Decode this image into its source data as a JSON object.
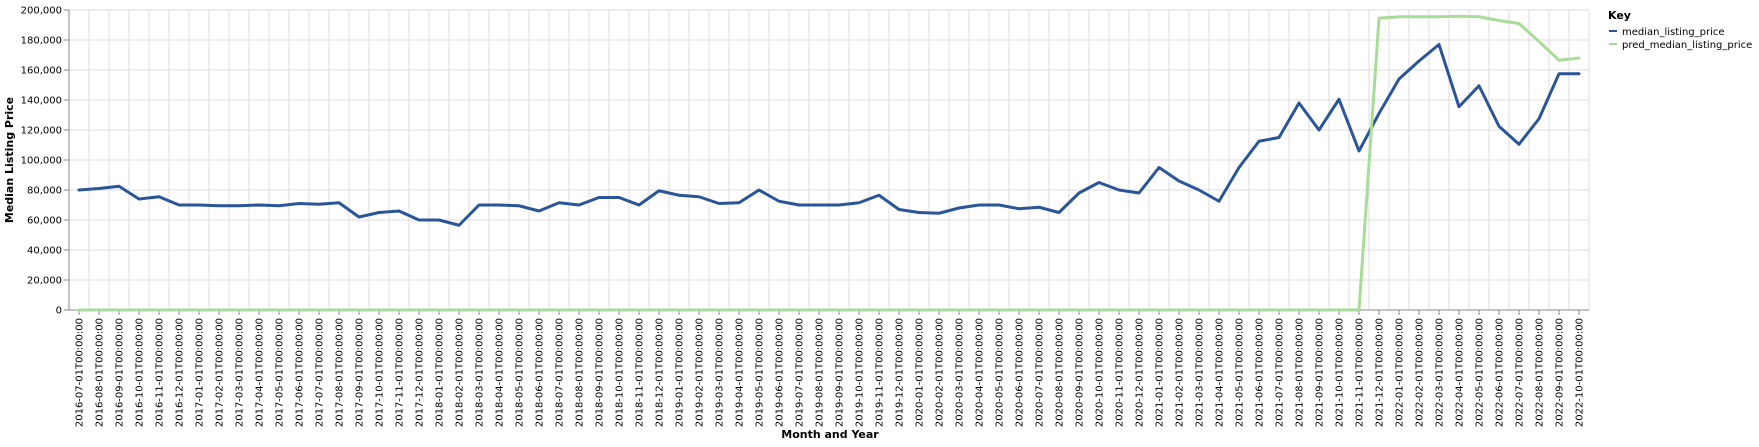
{
  "chart_data": {
    "type": "line",
    "xlabel": "Month and Year",
    "ylabel": "Median Listing Price",
    "ylim": [
      0,
      200000
    ],
    "yticks": [
      0,
      20000,
      40000,
      60000,
      80000,
      100000,
      120000,
      140000,
      160000,
      180000,
      200000
    ],
    "ytick_labels": [
      "0",
      "20,000",
      "40,000",
      "60,000",
      "80,000",
      "100,000",
      "120,000",
      "140,000",
      "160,000",
      "180,000",
      "200,000"
    ],
    "grid": true,
    "legend": {
      "title": "Key",
      "placement": "top-right"
    },
    "x": [
      "2016-07-01T00:00:00",
      "2016-08-01T00:00:00",
      "2016-09-01T00:00:00",
      "2016-10-01T00:00:00",
      "2016-11-01T00:00:00",
      "2016-12-01T00:00:00",
      "2017-01-01T00:00:00",
      "2017-02-01T00:00:00",
      "2017-03-01T00:00:00",
      "2017-04-01T00:00:00",
      "2017-05-01T00:00:00",
      "2017-06-01T00:00:00",
      "2017-07-01T00:00:00",
      "2017-08-01T00:00:00",
      "2017-09-01T00:00:00",
      "2017-10-01T00:00:00",
      "2017-11-01T00:00:00",
      "2017-12-01T00:00:00",
      "2018-01-01T00:00:00",
      "2018-02-01T00:00:00",
      "2018-03-01T00:00:00",
      "2018-04-01T00:00:00",
      "2018-05-01T00:00:00",
      "2018-06-01T00:00:00",
      "2018-07-01T00:00:00",
      "2018-08-01T00:00:00",
      "2018-09-01T00:00:00",
      "2018-10-01T00:00:00",
      "2018-11-01T00:00:00",
      "2018-12-01T00:00:00",
      "2019-01-01T00:00:00",
      "2019-02-01T00:00:00",
      "2019-03-01T00:00:00",
      "2019-04-01T00:00:00",
      "2019-05-01T00:00:00",
      "2019-06-01T00:00:00",
      "2019-07-01T00:00:00",
      "2019-08-01T00:00:00",
      "2019-09-01T00:00:00",
      "2019-10-01T00:00:00",
      "2019-11-01T00:00:00",
      "2019-12-01T00:00:00",
      "2020-01-01T00:00:00",
      "2020-02-01T00:00:00",
      "2020-03-01T00:00:00",
      "2020-04-01T00:00:00",
      "2020-05-01T00:00:00",
      "2020-06-01T00:00:00",
      "2020-07-01T00:00:00",
      "2020-08-01T00:00:00",
      "2020-09-01T00:00:00",
      "2020-10-01T00:00:00",
      "2020-11-01T00:00:00",
      "2020-12-01T00:00:00",
      "2021-01-01T00:00:00",
      "2021-02-01T00:00:00",
      "2021-03-01T00:00:00",
      "2021-04-01T00:00:00",
      "2021-05-01T00:00:00",
      "2021-06-01T00:00:00",
      "2021-07-01T00:00:00",
      "2021-08-01T00:00:00",
      "2021-09-01T00:00:00",
      "2021-10-01T00:00:00",
      "2021-11-01T00:00:00",
      "2021-12-01T00:00:00",
      "2022-01-01T00:00:00",
      "2022-02-01T00:00:00",
      "2022-03-01T00:00:00",
      "2022-04-01T00:00:00",
      "2022-05-01T00:00:00",
      "2022-06-01T00:00:00",
      "2022-07-01T00:00:00",
      "2022-08-01T00:00:00",
      "2022-09-01T00:00:00",
      "2022-10-01T00:00:00"
    ],
    "series": [
      {
        "name": "median_listing_price",
        "color": "#2a5599",
        "values": [
          80000,
          81000,
          82500,
          74000,
          75500,
          70000,
          70000,
          69500,
          69500,
          70000,
          69500,
          71000,
          70500,
          71500,
          62000,
          65000,
          66000,
          60000,
          60000,
          56500,
          70000,
          70000,
          69500,
          66000,
          71500,
          70000,
          75000,
          75000,
          70000,
          79500,
          76500,
          75500,
          71000,
          71500,
          80000,
          72500,
          70000,
          70000,
          70000,
          71500,
          76500,
          67000,
          65000,
          64500,
          68000,
          70000,
          70000,
          67500,
          68500,
          65000,
          78000,
          85000,
          80000,
          78000,
          95000,
          86000,
          80000,
          72500,
          95000,
          112500,
          115000,
          138000,
          120000,
          140500,
          106000,
          131000,
          154000,
          166000,
          177000,
          135500,
          149500,
          122500,
          110500,
          127500,
          157500,
          157500
        ]
      },
      {
        "name": "pred_median_listing_price",
        "color": "#a8dc99",
        "values": [
          0,
          0,
          0,
          0,
          0,
          0,
          0,
          0,
          0,
          0,
          0,
          0,
          0,
          0,
          0,
          0,
          0,
          0,
          0,
          0,
          0,
          0,
          0,
          0,
          0,
          0,
          0,
          0,
          0,
          0,
          0,
          0,
          0,
          0,
          0,
          0,
          0,
          0,
          0,
          0,
          0,
          0,
          0,
          0,
          0,
          0,
          0,
          0,
          0,
          0,
          0,
          0,
          0,
          0,
          0,
          0,
          0,
          0,
          0,
          0,
          0,
          0,
          0,
          0,
          0,
          194500,
          195500,
          195500,
          195500,
          195800,
          195500,
          193000,
          191000,
          179000,
          166500,
          168000
        ]
      }
    ]
  }
}
